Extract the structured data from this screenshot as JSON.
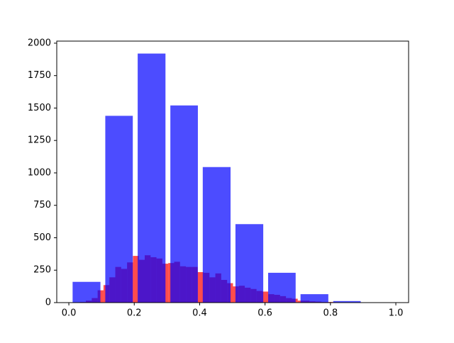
{
  "chart_data": {
    "type": "histogram",
    "xlim": [
      -0.037,
      1.039
    ],
    "ylim": [
      0,
      2016
    ],
    "xticks": [
      {
        "value": 0,
        "label": "0.0"
      },
      {
        "value": 0.2,
        "label": "0.2"
      },
      {
        "value": 0.4,
        "label": "0.4"
      },
      {
        "value": 0.6,
        "label": "0.6"
      },
      {
        "value": 0.8,
        "label": "0.8"
      },
      {
        "value": 1.0,
        "label": "1.0"
      }
    ],
    "yticks": [
      0,
      250,
      500,
      750,
      1000,
      1250,
      1500,
      1750,
      2000
    ],
    "series": [
      {
        "color": "#ff0000",
        "bins": [
          0.034,
          0.052,
          0.07,
          0.088,
          0.106,
          0.124,
          0.142,
          0.16,
          0.178,
          0.196,
          0.214,
          0.232,
          0.25,
          0.268,
          0.286,
          0.304,
          0.322,
          0.34,
          0.358,
          0.376,
          0.394,
          0.412,
          0.43,
          0.448,
          0.466,
          0.484,
          0.502,
          0.52,
          0.538,
          0.556,
          0.574,
          0.592,
          0.61,
          0.628,
          0.646,
          0.664,
          0.682,
          0.7,
          0.718,
          0.736,
          0.754,
          0.772,
          0.79,
          0.808,
          0.826
        ],
        "values": [
          5,
          15,
          35,
          95,
          135,
          195,
          275,
          260,
          310,
          360,
          330,
          365,
          350,
          340,
          300,
          305,
          315,
          280,
          275,
          275,
          235,
          230,
          195,
          225,
          175,
          150,
          125,
          130,
          115,
          105,
          90,
          85,
          65,
          60,
          50,
          35,
          30,
          15,
          15,
          10,
          8,
          5,
          5,
          3
        ]
      },
      {
        "color": "#0000ff",
        "bins": [
          0.004,
          0.104,
          0.203,
          0.303,
          0.402,
          0.502,
          0.602,
          0.701,
          0.801,
          0.9,
          1.0
        ],
        "values": [
          160,
          1440,
          1920,
          1520,
          1045,
          605,
          230,
          65,
          12,
          0
        ]
      }
    ]
  }
}
